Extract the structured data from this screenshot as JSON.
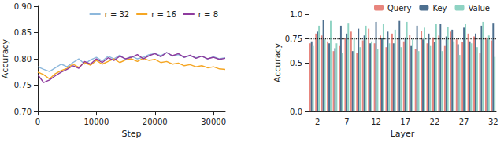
{
  "chart_data": [
    {
      "type": "line",
      "xlabel": "Step",
      "ylabel": "Accuracy",
      "x": [
        0,
        1000,
        2000,
        3000,
        4000,
        5000,
        6000,
        7000,
        8000,
        9000,
        10000,
        11000,
        12000,
        13000,
        14000,
        15000,
        16000,
        17000,
        18000,
        19000,
        20000,
        21000,
        22000,
        23000,
        24000,
        25000,
        26000,
        27000,
        28000,
        29000,
        30000,
        31000,
        32000
      ],
      "series": [
        {
          "name": "r = 32",
          "color": "#8db8dc",
          "values": [
            0.785,
            0.78,
            0.776,
            0.783,
            0.79,
            0.785,
            0.793,
            0.8,
            0.79,
            0.798,
            0.803,
            0.796,
            0.805,
            0.8,
            0.807,
            0.799,
            0.805,
            0.8,
            0.803,
            0.808,
            0.81,
            0.806,
            0.812,
            0.805,
            0.808,
            0.803,
            0.806,
            0.802,
            0.805,
            0.8,
            0.804,
            0.8,
            0.802
          ]
        },
        {
          "name": "r = 16",
          "color": "#f5a623",
          "values": [
            0.775,
            0.77,
            0.762,
            0.772,
            0.778,
            0.782,
            0.79,
            0.784,
            0.793,
            0.788,
            0.797,
            0.79,
            0.795,
            0.8,
            0.793,
            0.798,
            0.8,
            0.795,
            0.801,
            0.797,
            0.799,
            0.793,
            0.795,
            0.79,
            0.792,
            0.787,
            0.789,
            0.785,
            0.787,
            0.783,
            0.785,
            0.781,
            0.78
          ]
        },
        {
          "name": "r = 8",
          "color": "#8e3b9e",
          "values": [
            0.77,
            0.755,
            0.76,
            0.768,
            0.775,
            0.78,
            0.787,
            0.782,
            0.795,
            0.79,
            0.8,
            0.793,
            0.802,
            0.797,
            0.805,
            0.8,
            0.803,
            0.808,
            0.8,
            0.806,
            0.81,
            0.804,
            0.812,
            0.806,
            0.81,
            0.803,
            0.807,
            0.801,
            0.805,
            0.8,
            0.803,
            0.799,
            0.801
          ]
        }
      ],
      "xlim": [
        0,
        32000
      ],
      "xticks": [
        0,
        10000,
        20000,
        30000
      ],
      "ylim": [
        0.7,
        0.9
      ],
      "yticks": [
        {
          "value": 0.7,
          "label": "0.70"
        },
        0.75,
        {
          "value": 0.8,
          "label": "0.80"
        },
        0.85,
        {
          "value": 0.9,
          "label": "0.90"
        }
      ],
      "grid": false,
      "legend": "upper right"
    },
    {
      "type": "bar",
      "xlabel": "Layer",
      "ylabel": "Accuracy",
      "categories": [
        null,
        "2",
        null,
        null,
        null,
        null,
        "7",
        null,
        null,
        null,
        null,
        "12",
        null,
        null,
        null,
        null,
        "17",
        null,
        null,
        null,
        null,
        "22",
        null,
        null,
        null,
        null,
        "27",
        null,
        null,
        null,
        null,
        "32"
      ],
      "series": [
        {
          "name": "Query",
          "color": "#e8857d",
          "values": [
            0.7,
            0.8,
            0.78,
            0.72,
            0.62,
            0.68,
            0.75,
            0.82,
            0.6,
            0.73,
            0.85,
            0.7,
            0.78,
            0.66,
            0.8,
            0.74,
            0.72,
            0.79,
            0.64,
            0.83,
            0.7,
            0.76,
            0.78,
            0.68,
            0.82,
            0.74,
            0.71,
            0.8,
            0.77,
            0.6,
            0.76,
            0.73
          ]
        },
        {
          "name": "Key",
          "color": "#4d6f8f",
          "values": [
            0.72,
            0.82,
            0.94,
            0.7,
            0.65,
            0.88,
            0.8,
            0.62,
            0.85,
            0.78,
            0.7,
            0.92,
            0.75,
            0.82,
            0.7,
            0.93,
            0.76,
            0.68,
            0.88,
            0.74,
            0.8,
            0.71,
            0.9,
            0.77,
            0.84,
            0.69,
            0.86,
            0.72,
            0.8,
            0.88,
            0.74,
            0.91
          ]
        },
        {
          "name": "Value",
          "color": "#8fd3c3",
          "values": [
            0.68,
            0.88,
            0.74,
            0.93,
            0.7,
            0.6,
            0.91,
            0.76,
            0.66,
            0.88,
            0.72,
            0.64,
            0.9,
            0.7,
            0.84,
            0.66,
            0.92,
            0.74,
            0.62,
            0.86,
            0.68,
            0.9,
            0.62,
            0.87,
            0.72,
            0.58,
            0.9,
            0.7,
            0.66,
            0.92,
            0.78,
            0.56
          ]
        }
      ],
      "ylim": [
        0,
        1
      ],
      "yticks": [
        {
          "value": 0,
          "label": "0.0"
        },
        0.5,
        0.75,
        {
          "value": 1,
          "label": "1.0"
        }
      ],
      "threshold": 0.75,
      "grid": false,
      "legend": "top"
    }
  ]
}
